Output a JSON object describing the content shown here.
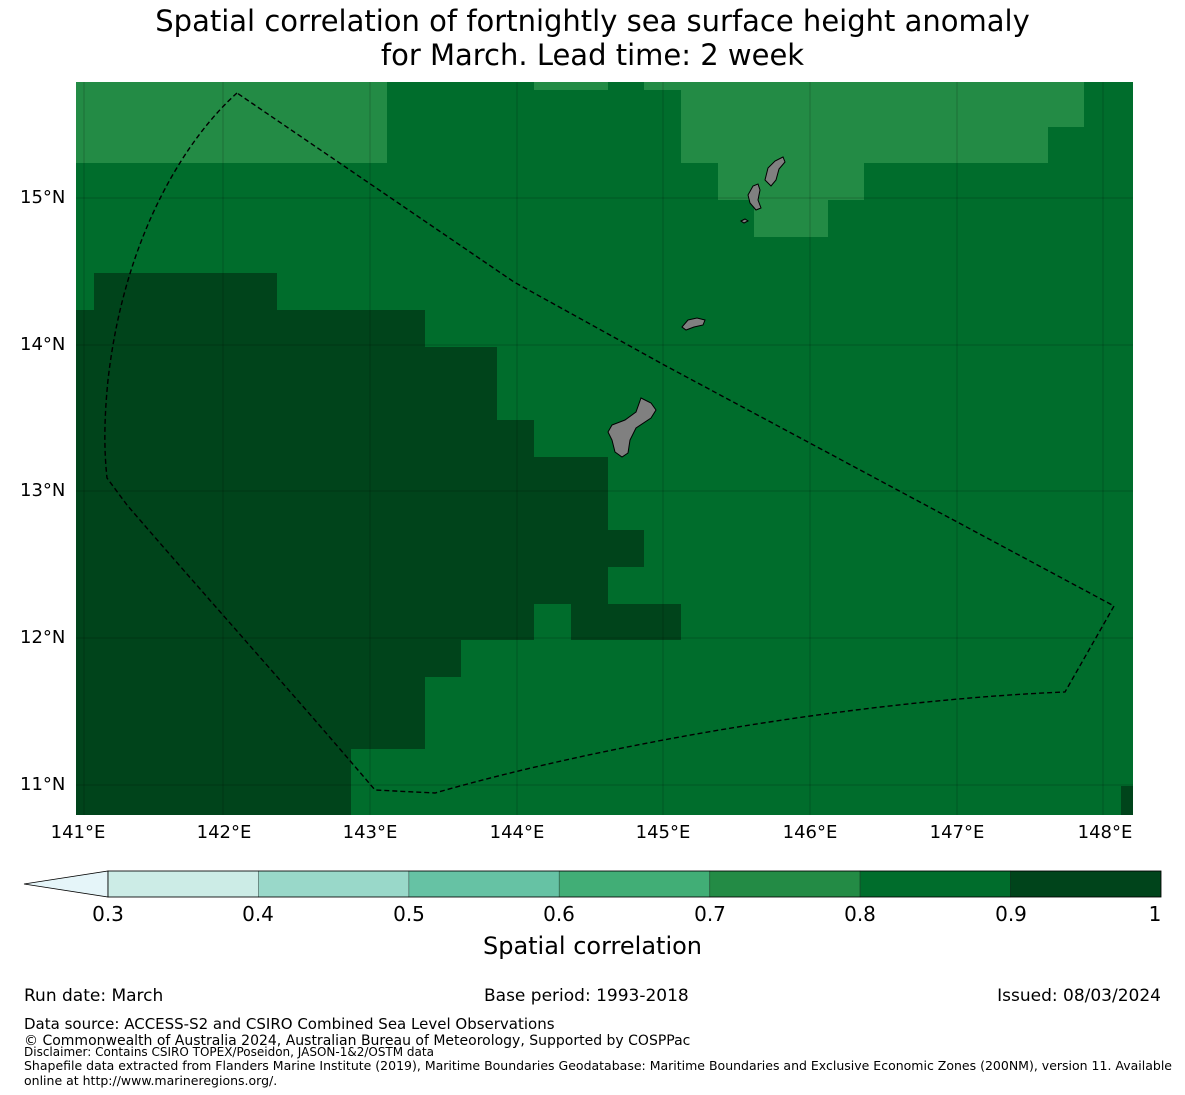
{
  "title": {
    "line1": "Spatial correlation of fortnightly sea surface height anomaly",
    "line2": "for March. Lead time: 2 week"
  },
  "map": {
    "lat_ticks": [
      "15°N",
      "14°N",
      "13°N",
      "12°N",
      "11°N"
    ],
    "lon_ticks": [
      "141°E",
      "142°E",
      "143°E",
      "144°E",
      "145°E",
      "146°E",
      "147°E",
      "148°E"
    ],
    "land_color": "#808080",
    "boundary_style": "dashed black",
    "class_colors": {
      "0.7-0.8": "#238b45",
      "0.8-0.9": "#006d2c",
      "0.9-1.0": "#00441b"
    }
  },
  "colorbar": {
    "label": "Spatial correlation",
    "ticks": [
      "0.3",
      "0.4",
      "0.5",
      "0.6",
      "0.7",
      "0.8",
      "0.9",
      "1"
    ],
    "colors": [
      "#ccece6",
      "#99d8c9",
      "#66c2a4",
      "#41ae76",
      "#238b45",
      "#006d2c",
      "#00441b"
    ],
    "under_color": "#e5f5f9",
    "extend": "min"
  },
  "info": {
    "run_date": "Run date: March",
    "base_period": "Base period: 1993-2018",
    "issued": "Issued: 08/03/2024",
    "data_source": "Data source: ACCESS-S2 and CSIRO Combined Sea Level Observations",
    "copyright": "© Commonwealth of Australia 2024, Australian Bureau of Meteorology, Supported by COSPPac",
    "disclaimer": "Disclaimer: Contains CSIRO TOPEX/Poseidon, JASON-1&2/OSTM data",
    "shapefile": "Shapefile data extracted from Flanders Marine Institute (2019), Maritime Boundaries Geodatabase: Maritime Boundaries and Exclusive Economic Zones (200NM), version 11. Available online at http://www.marineregions.org/."
  }
}
